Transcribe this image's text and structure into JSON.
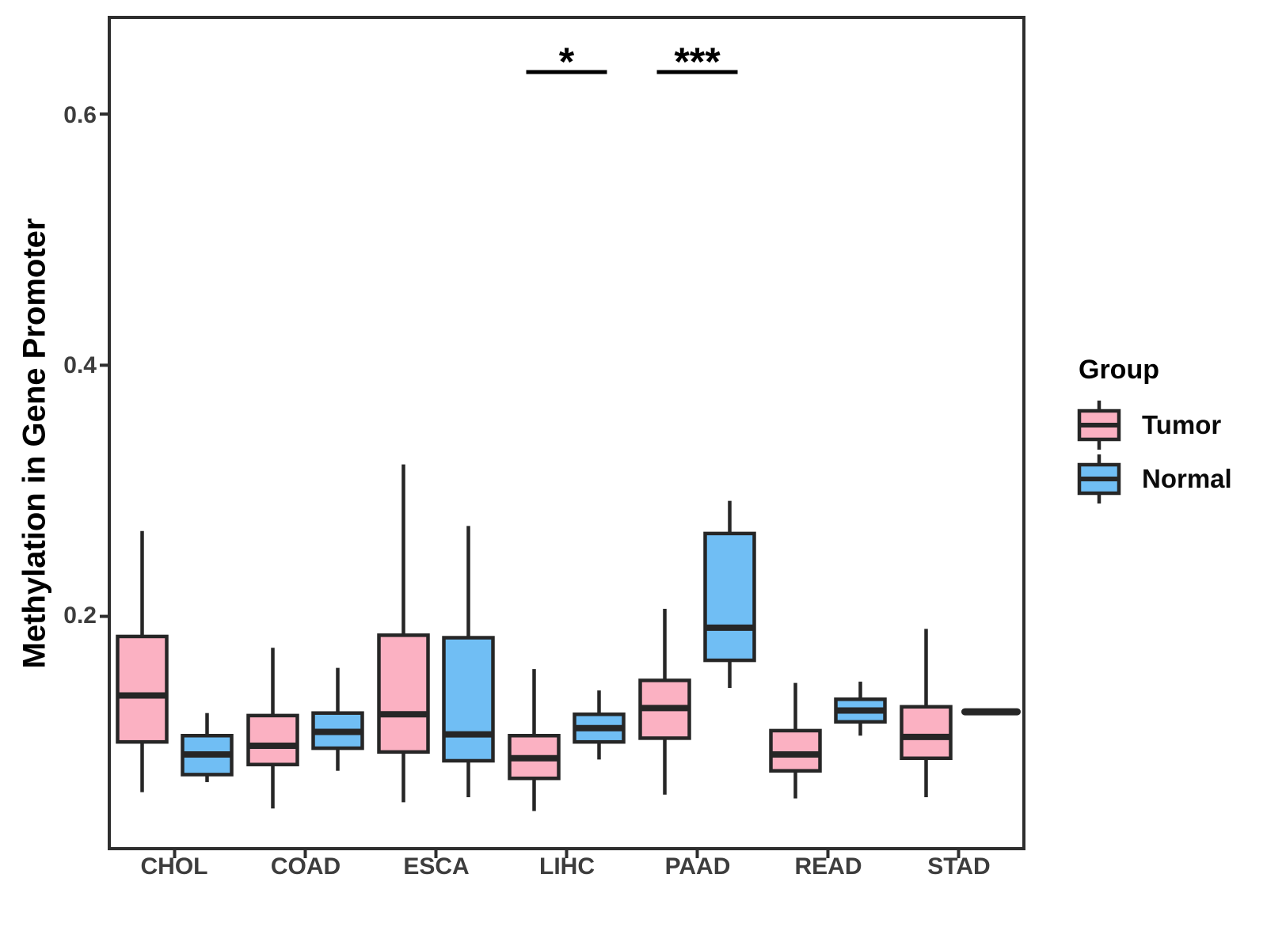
{
  "chart_data": {
    "type": "boxplot",
    "title": "",
    "xlabel": "",
    "ylabel": "Methylation in Gene Promoter",
    "categories": [
      "CHOL",
      "COAD",
      "ESCA",
      "LIHC",
      "PAAD",
      "READ",
      "STAD"
    ],
    "ylim": [
      0.015,
      0.677
    ],
    "yticks": [
      0.2,
      0.4,
      0.6
    ],
    "ytick_labels": [
      "0.2",
      "0.4",
      "0.6"
    ],
    "grid": false,
    "legend_position": "right",
    "series": [
      {
        "name": "Tumor",
        "color": "#FBB1C2",
        "stats": [
          {
            "min": 0.06,
            "q1": 0.1,
            "median": 0.137,
            "q3": 0.184,
            "max": 0.268
          },
          {
            "min": 0.047,
            "q1": 0.082,
            "median": 0.097,
            "q3": 0.121,
            "max": 0.175
          },
          {
            "min": 0.052,
            "q1": 0.092,
            "median": 0.122,
            "q3": 0.185,
            "max": 0.321
          },
          {
            "min": 0.045,
            "q1": 0.071,
            "median": 0.087,
            "q3": 0.105,
            "max": 0.158
          },
          {
            "min": 0.058,
            "q1": 0.103,
            "median": 0.127,
            "q3": 0.149,
            "max": 0.206
          },
          {
            "min": 0.055,
            "q1": 0.077,
            "median": 0.09,
            "q3": 0.109,
            "max": 0.147
          },
          {
            "min": 0.056,
            "q1": 0.087,
            "median": 0.104,
            "q3": 0.128,
            "max": 0.19
          }
        ]
      },
      {
        "name": "Normal",
        "color": "#70BEF4",
        "stats": [
          {
            "min": 0.068,
            "q1": 0.074,
            "median": 0.09,
            "q3": 0.105,
            "max": 0.123
          },
          {
            "min": 0.077,
            "q1": 0.095,
            "median": 0.108,
            "q3": 0.123,
            "max": 0.159
          },
          {
            "min": 0.056,
            "q1": 0.085,
            "median": 0.106,
            "q3": 0.183,
            "max": 0.272
          },
          {
            "min": 0.086,
            "q1": 0.1,
            "median": 0.111,
            "q3": 0.122,
            "max": 0.141
          },
          {
            "min": 0.143,
            "q1": 0.165,
            "median": 0.191,
            "q3": 0.266,
            "max": 0.292
          },
          {
            "min": 0.105,
            "q1": 0.116,
            "median": 0.125,
            "q3": 0.134,
            "max": 0.148
          },
          {
            "median_only": true,
            "median": 0.124
          }
        ]
      }
    ],
    "annotations": [
      {
        "category": "LIHC",
        "label": "*"
      },
      {
        "category": "PAAD",
        "label": "***"
      }
    ]
  },
  "legend": {
    "title": "Group",
    "items": [
      {
        "label": "Tumor",
        "color": "#FBB1C2"
      },
      {
        "label": "Normal",
        "color": "#70BEF4"
      }
    ]
  },
  "style": {
    "box_stroke": "#262626",
    "axis_color": "#2e2e2e",
    "tick_text_color": "#3d3d3d"
  }
}
